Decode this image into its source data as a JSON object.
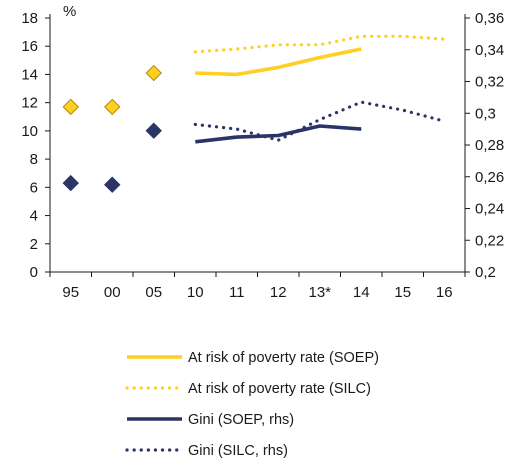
{
  "chart_data": {
    "type": "line",
    "ylabel_left_unit": "%",
    "categories": [
      "95",
      "00",
      "05",
      "10",
      "11",
      "12",
      "13*",
      "14",
      "15",
      "16"
    ],
    "yleft": {
      "range": [
        0,
        18
      ],
      "ticks": [
        "0",
        "2",
        "4",
        "6",
        "8",
        "10",
        "12",
        "14",
        "16",
        "18"
      ]
    },
    "yright": {
      "range": [
        0.2,
        0.36
      ],
      "ticks": [
        "0,2",
        "0,22",
        "0,24",
        "0,26",
        "0,28",
        "0,3",
        "0,32",
        "0,34",
        "0,36"
      ]
    },
    "grid": false,
    "legend_position": "bottom",
    "series": [
      {
        "name": "At risk of poverty rate (SOEP)",
        "axis": "left",
        "color": "#fdd023",
        "style": "solid",
        "line_values": [
          null,
          null,
          null,
          14.1,
          14.0,
          14.5,
          15.2,
          15.8,
          null,
          null
        ],
        "marker_values": [
          11.7,
          11.7,
          14.1,
          null,
          null,
          null,
          null,
          null,
          null,
          null
        ]
      },
      {
        "name": "At risk of poverty rate (SILC)",
        "axis": "left",
        "color": "#fdd023",
        "style": "dotted",
        "line_values": [
          null,
          null,
          null,
          15.6,
          15.8,
          16.1,
          16.1,
          16.7,
          16.7,
          16.5
        ],
        "marker_values": [
          null,
          null,
          null,
          null,
          null,
          null,
          null,
          null,
          null,
          null
        ]
      },
      {
        "name": "Gini (SOEP, rhs)",
        "axis": "right",
        "color": "#2b3467",
        "style": "solid",
        "line_values": [
          null,
          null,
          null,
          0.282,
          0.285,
          0.286,
          0.292,
          0.29,
          null,
          null
        ],
        "marker_values": [
          0.256,
          0.255,
          0.289,
          null,
          null,
          null,
          null,
          null,
          null,
          null
        ]
      },
      {
        "name": "Gini (SILC, rhs)",
        "axis": "right",
        "color": "#2b3467",
        "style": "dotted",
        "line_values": [
          null,
          null,
          null,
          0.293,
          0.29,
          0.283,
          0.296,
          0.307,
          0.302,
          0.295
        ],
        "marker_values": [
          null,
          null,
          null,
          null,
          null,
          null,
          null,
          null,
          null,
          null
        ]
      }
    ]
  }
}
